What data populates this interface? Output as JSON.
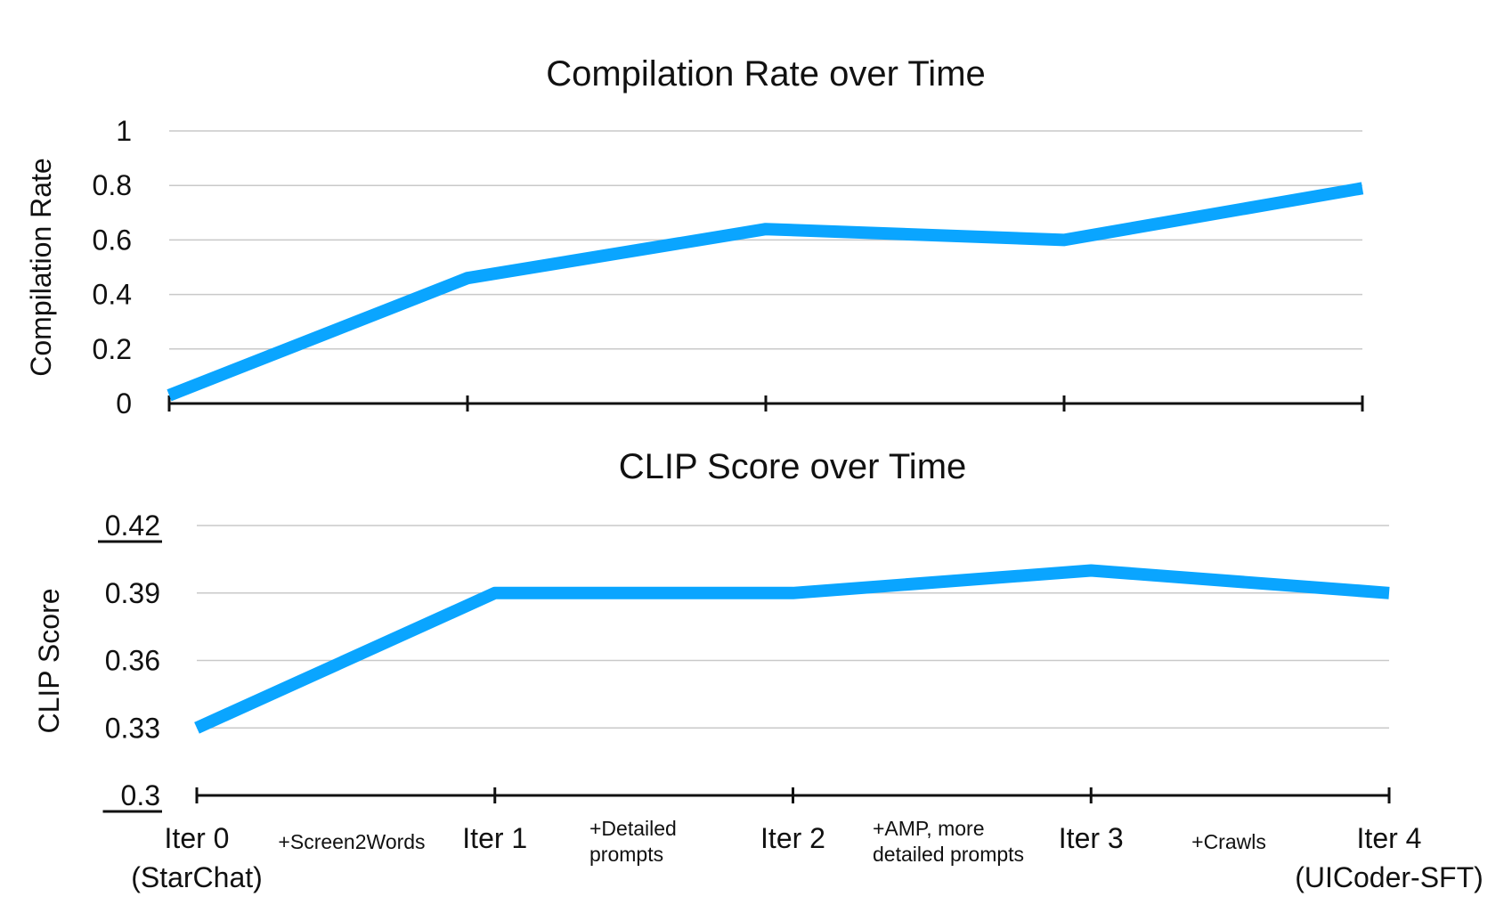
{
  "chart_data": [
    {
      "type": "line",
      "title": "Compilation Rate over Time",
      "ylabel": "Compilation Rate",
      "xlabel": "",
      "ylim": [
        0,
        1
      ],
      "yticks": [
        "0",
        "0.2",
        "0.4",
        "0.6",
        "0.8",
        "1"
      ],
      "x": [
        "Iter 0",
        "Iter 1",
        "Iter 2",
        "Iter 3",
        "Iter 4"
      ],
      "values": [
        0.03,
        0.46,
        0.64,
        0.6,
        0.79
      ],
      "color": "#0aa5ff",
      "grid": true
    },
    {
      "type": "line",
      "title": "CLIP Score over Time",
      "ylabel": "CLIP Score",
      "xlabel": "",
      "ylim": [
        0.3,
        0.42
      ],
      "yticks": [
        "0.3",
        "0.33",
        "0.36",
        "0.39",
        "0.42"
      ],
      "x": [
        "Iter 0",
        "Iter 1",
        "Iter 2",
        "Iter 3",
        "Iter 4"
      ],
      "values": [
        0.33,
        0.39,
        0.39,
        0.4,
        0.39
      ],
      "color": "#0aa5ff",
      "grid": true
    }
  ],
  "x_categories": [
    {
      "name": "Iter 0",
      "sub": "(StarChat)"
    },
    {
      "name": "Iter 1",
      "sub": ""
    },
    {
      "name": "Iter 2",
      "sub": ""
    },
    {
      "name": "Iter 3",
      "sub": ""
    },
    {
      "name": "Iter 4",
      "sub": "(UICoder-SFT)"
    }
  ],
  "transition_notes": [
    [
      "+Screen2Words"
    ],
    [
      "+Detailed",
      "prompts"
    ],
    [
      "+AMP, more",
      "detailed prompts"
    ],
    [
      "+Crawls"
    ]
  ]
}
